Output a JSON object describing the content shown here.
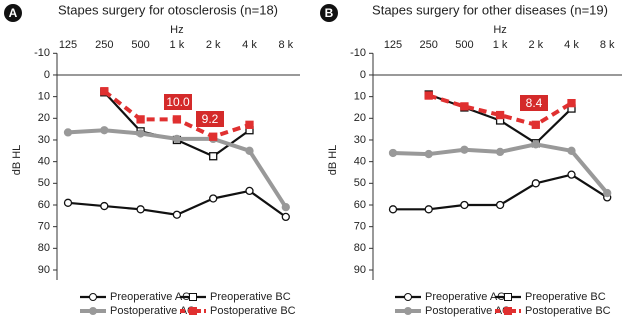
{
  "chart_data": [
    {
      "type": "line",
      "panel_label": "A",
      "title": "Stapes surgery for otosclerosis (n=18)",
      "x_label": "Hz",
      "y_label": "dB HL",
      "categories": [
        "125",
        "250",
        "500",
        "1 k",
        "2 k",
        "4 k",
        "8 k"
      ],
      "ylim": [
        -10,
        90
      ],
      "y_inverted": true,
      "yticks": [
        -10,
        0,
        10,
        20,
        30,
        40,
        50,
        60,
        70,
        80,
        90
      ],
      "series": [
        {
          "name": "Preoperative AC",
          "color": "#111111",
          "values": [
            59,
            60.5,
            62,
            64.5,
            57,
            53.5,
            65.5
          ]
        },
        {
          "name": "Preoperative BC",
          "color": "#111111",
          "values": [
            null,
            8,
            26,
            30,
            37.5,
            25.5,
            null
          ]
        },
        {
          "name": "Postoperative AC",
          "color": "#999999",
          "values": [
            26.5,
            25.5,
            27,
            29.5,
            29.5,
            35,
            61
          ]
        },
        {
          "name": "Postoperative BC",
          "color": "#e03030",
          "values": [
            null,
            7.5,
            20.5,
            20.5,
            28.5,
            23,
            null
          ]
        }
      ],
      "annotations": [
        "10.0",
        "9.2"
      ]
    },
    {
      "type": "line",
      "panel_label": "B",
      "title": "Stapes surgery for other diseases (n=19)",
      "x_label": "Hz",
      "y_label": "dB HL",
      "categories": [
        "125",
        "250",
        "500",
        "1 k",
        "2 k",
        "4 k",
        "8 k"
      ],
      "ylim": [
        -10,
        90
      ],
      "y_inverted": true,
      "yticks": [
        -10,
        0,
        10,
        20,
        30,
        40,
        50,
        60,
        70,
        80,
        90
      ],
      "series": [
        {
          "name": "Preoperative AC",
          "color": "#111111",
          "values": [
            62,
            62,
            60,
            60,
            50,
            46,
            56.5
          ]
        },
        {
          "name": "Preoperative BC",
          "color": "#111111",
          "values": [
            null,
            9,
            15,
            21,
            31.5,
            15.5,
            null
          ]
        },
        {
          "name": "Postoperative AC",
          "color": "#999999",
          "values": [
            36,
            36.5,
            34.5,
            35.5,
            32,
            35,
            54.5
          ]
        },
        {
          "name": "Postoperative BC",
          "color": "#e03030",
          "values": [
            null,
            9.5,
            14.5,
            18.5,
            23,
            13,
            null
          ]
        }
      ],
      "annotations": [
        "8.4"
      ]
    }
  ]
}
